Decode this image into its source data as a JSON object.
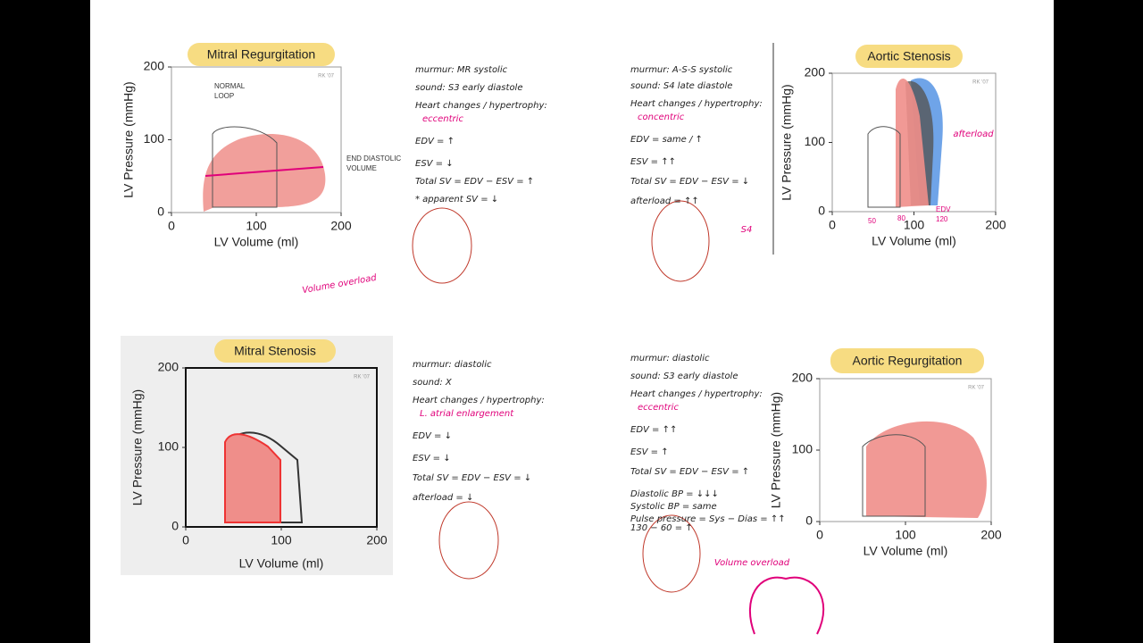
{
  "panels": [
    {
      "title": "Mitral Regurgitation",
      "y_label": "LV Pressure (mmHg)",
      "x_label": "LV Volume (ml)",
      "xticks": [
        0,
        100,
        200
      ],
      "yticks": [
        0,
        100,
        200
      ],
      "watermark": "RK '07",
      "annotations": [
        [
          "NORMAL",
          "LOOP"
        ],
        [
          "END DIASTOLIC",
          "VOLUME"
        ]
      ],
      "notes": [
        "murmur: MR systolic",
        "sound: S3 early diastole",
        "Heart changes / hypertrophy:",
        "eccentric",
        "EDV = ↑",
        "ESV = ↓",
        "Total SV = EDV − ESV = ↑",
        "* apparent SV = ↓"
      ],
      "extra": [
        "Volume overload"
      ]
    },
    {
      "title": "Aortic Stenosis",
      "y_label": "LV Pressure (mmHg)",
      "x_label": "LV Volume (ml)",
      "xticks": [
        0,
        100,
        200
      ],
      "yticks": [
        0,
        100,
        200
      ],
      "watermark": "RK '07",
      "annotations": [
        [
          "50"
        ],
        [
          "80"
        ],
        [
          "EDV",
          "120"
        ]
      ],
      "notes": [
        "murmur: A-S-S systolic",
        "sound: S4 late diastole",
        "Heart changes / hypertrophy:",
        "concentric",
        "EDV = same / ↑",
        "ESV = ↑↑",
        "Total SV = EDV − ESV = ↓",
        "afterload = ↑↑"
      ],
      "extra": [
        "afterload",
        "S4"
      ]
    },
    {
      "title": "Mitral Stenosis",
      "y_label": "LV Pressure (mmHg)",
      "x_label": "LV Volume (ml)",
      "xticks": [
        0,
        100,
        200
      ],
      "yticks": [
        0,
        100,
        200
      ],
      "watermark": "RK '07",
      "annotations": [],
      "notes": [
        "murmur: diastolic",
        "sound: X",
        "Heart changes / hypertrophy:",
        "L. atrial enlargement",
        "EDV = ↓",
        "ESV = ↓",
        "Total SV = EDV − ESV = ↓",
        "afterload = ↓"
      ],
      "extra": []
    },
    {
      "title": "Aortic Regurgitation",
      "y_label": "LV Pressure (mmHg)",
      "x_label": "LV Volume (ml)",
      "xticks": [
        0,
        100,
        200
      ],
      "yticks": [
        0,
        100,
        200
      ],
      "watermark": "RK '07",
      "annotations": [],
      "notes": [
        "murmur: diastolic",
        "sound: S3 early diastole",
        "Heart changes / hypertrophy:",
        "eccentric",
        "EDV = ↑↑",
        "ESV = ↑",
        "Total SV = EDV − ESV = ↑",
        "Diastolic BP = ↓↓↓",
        "Systolic BP = same",
        "Pulse pressure = Sys − Dias = ↑↑",
        "130 − 60 = ↑"
      ],
      "extra": [
        "Volume overload"
      ]
    }
  ]
}
